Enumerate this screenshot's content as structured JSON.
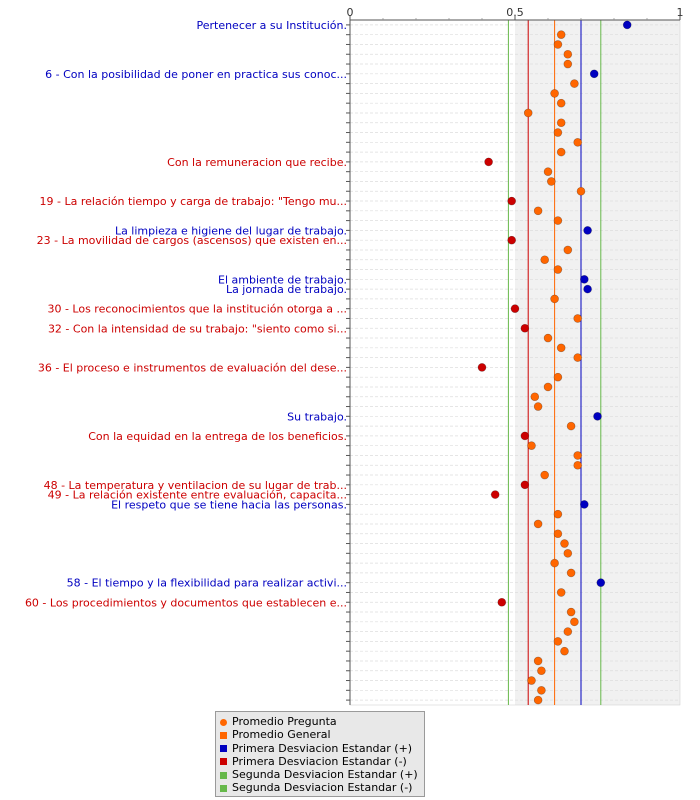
{
  "chart_data": {
    "type": "scatter",
    "orientation": "horizontal",
    "title": "",
    "xlabel": "",
    "ylabel": "",
    "xlim": [
      0,
      1
    ],
    "x_ticks": [
      0,
      0.5,
      1
    ],
    "x_tick_labels": [
      "0",
      "0.5",
      "1"
    ],
    "grid": true,
    "legend_position": "bottom",
    "colors": {
      "above": "#0000c0",
      "below": "#cc0000",
      "neutral": "#ff6600",
      "promedio_pregunta": "#ff6600",
      "promedio_general": "#ff6600",
      "sd1": "#0000c0",
      "sd1_minus": "#cc0000",
      "sd2": "#66b84a"
    },
    "promedio_general": 0.62,
    "sd1_plus": 0.7,
    "sd1_minus": 0.54,
    "sd2_plus": 0.76,
    "sd2_minus": 0.48,
    "points": [
      {
        "label": "Pertenecer a su Institución.",
        "value": 0.84,
        "cls": "above"
      },
      {
        "label": "",
        "value": 0.64,
        "cls": "neutral"
      },
      {
        "label": "",
        "value": 0.63,
        "cls": "neutral"
      },
      {
        "label": "",
        "value": 0.66,
        "cls": "neutral"
      },
      {
        "label": "",
        "value": 0.66,
        "cls": "neutral"
      },
      {
        "label": "6 - Con la posibilidad de poner en practica sus conoc...",
        "value": 0.74,
        "cls": "above"
      },
      {
        "label": "",
        "value": 0.68,
        "cls": "neutral"
      },
      {
        "label": "",
        "value": 0.62,
        "cls": "neutral"
      },
      {
        "label": "",
        "value": 0.64,
        "cls": "neutral"
      },
      {
        "label": "",
        "value": 0.54,
        "cls": "neutral"
      },
      {
        "label": "",
        "value": 0.64,
        "cls": "neutral"
      },
      {
        "label": "",
        "value": 0.63,
        "cls": "neutral"
      },
      {
        "label": "",
        "value": 0.69,
        "cls": "neutral"
      },
      {
        "label": "",
        "value": 0.64,
        "cls": "neutral"
      },
      {
        "label": "Con la remuneracion que recibe.",
        "value": 0.42,
        "cls": "below"
      },
      {
        "label": "",
        "value": 0.6,
        "cls": "neutral"
      },
      {
        "label": "",
        "value": 0.61,
        "cls": "neutral"
      },
      {
        "label": "",
        "value": 0.7,
        "cls": "neutral"
      },
      {
        "label": "19 - La relación tiempo y carga de trabajo: \"Tengo mu...",
        "value": 0.49,
        "cls": "below"
      },
      {
        "label": "",
        "value": 0.57,
        "cls": "neutral"
      },
      {
        "label": "",
        "value": 0.63,
        "cls": "neutral"
      },
      {
        "label": "La limpieza e higiene del lugar de trabajo.",
        "value": 0.72,
        "cls": "above"
      },
      {
        "label": "23 - La movilidad de cargos (ascensos) que existen en...",
        "value": 0.49,
        "cls": "below"
      },
      {
        "label": "",
        "value": 0.66,
        "cls": "neutral"
      },
      {
        "label": "",
        "value": 0.59,
        "cls": "neutral"
      },
      {
        "label": "",
        "value": 0.63,
        "cls": "neutral"
      },
      {
        "label": "El ambiente de trabajo.",
        "value": 0.71,
        "cls": "above"
      },
      {
        "label": "La jornada de trabajo.",
        "value": 0.72,
        "cls": "above"
      },
      {
        "label": "",
        "value": 0.62,
        "cls": "neutral"
      },
      {
        "label": "30 - Los reconocimientos que la institución otorga a ...",
        "value": 0.5,
        "cls": "below"
      },
      {
        "label": "",
        "value": 0.69,
        "cls": "neutral"
      },
      {
        "label": "32 - Con la intensidad de su trabajo: \"siento como si...",
        "value": 0.53,
        "cls": "below"
      },
      {
        "label": "",
        "value": 0.6,
        "cls": "neutral"
      },
      {
        "label": "",
        "value": 0.64,
        "cls": "neutral"
      },
      {
        "label": "",
        "value": 0.69,
        "cls": "neutral"
      },
      {
        "label": "36 - El proceso e instrumentos de evaluación del dese...",
        "value": 0.4,
        "cls": "below"
      },
      {
        "label": "",
        "value": 0.63,
        "cls": "neutral"
      },
      {
        "label": "",
        "value": 0.6,
        "cls": "neutral"
      },
      {
        "label": "",
        "value": 0.56,
        "cls": "neutral"
      },
      {
        "label": "",
        "value": 0.57,
        "cls": "neutral"
      },
      {
        "label": "Su trabajo.",
        "value": 0.75,
        "cls": "above"
      },
      {
        "label": "",
        "value": 0.67,
        "cls": "neutral"
      },
      {
        "label": "Con la equidad en la entrega de los beneficios.",
        "value": 0.53,
        "cls": "below"
      },
      {
        "label": "",
        "value": 0.55,
        "cls": "neutral"
      },
      {
        "label": "",
        "value": 0.69,
        "cls": "neutral"
      },
      {
        "label": "",
        "value": 0.69,
        "cls": "neutral"
      },
      {
        "label": "",
        "value": 0.59,
        "cls": "neutral"
      },
      {
        "label": "48 - La temperatura y ventilacion de su lugar de trab...",
        "value": 0.53,
        "cls": "below"
      },
      {
        "label": "49 - La relación existente entre evaluación, capacita...",
        "value": 0.44,
        "cls": "below"
      },
      {
        "label": "El respeto que se tiene hacia las personas.",
        "value": 0.71,
        "cls": "above"
      },
      {
        "label": "",
        "value": 0.63,
        "cls": "neutral"
      },
      {
        "label": "",
        "value": 0.57,
        "cls": "neutral"
      },
      {
        "label": "",
        "value": 0.63,
        "cls": "neutral"
      },
      {
        "label": "",
        "value": 0.65,
        "cls": "neutral"
      },
      {
        "label": "",
        "value": 0.66,
        "cls": "neutral"
      },
      {
        "label": "",
        "value": 0.62,
        "cls": "neutral"
      },
      {
        "label": "",
        "value": 0.67,
        "cls": "neutral"
      },
      {
        "label": "58 - El tiempo y la flexibilidad para realizar activi...",
        "value": 0.76,
        "cls": "above"
      },
      {
        "label": "",
        "value": 0.64,
        "cls": "neutral"
      },
      {
        "label": "60 - Los procedimientos y documentos que establecen e...",
        "value": 0.46,
        "cls": "below"
      },
      {
        "label": "",
        "value": 0.67,
        "cls": "neutral"
      },
      {
        "label": "",
        "value": 0.68,
        "cls": "neutral"
      },
      {
        "label": "",
        "value": 0.66,
        "cls": "neutral"
      },
      {
        "label": "",
        "value": 0.63,
        "cls": "neutral"
      },
      {
        "label": "",
        "value": 0.65,
        "cls": "neutral"
      },
      {
        "label": "",
        "value": 0.57,
        "cls": "neutral"
      },
      {
        "label": "",
        "value": 0.58,
        "cls": "neutral"
      },
      {
        "label": "",
        "value": 0.55,
        "cls": "neutral"
      },
      {
        "label": "",
        "value": 0.58,
        "cls": "neutral"
      },
      {
        "label": "",
        "value": 0.57,
        "cls": "neutral"
      }
    ],
    "legend": [
      {
        "label": "Promedio Pregunta",
        "color": "#ff6600",
        "shape": "circle"
      },
      {
        "label": "Promedio General",
        "color": "#ff6600",
        "shape": "square"
      },
      {
        "label": "Primera Desviacion Estandar (+)",
        "color": "#0000c0",
        "shape": "square"
      },
      {
        "label": "Primera Desviacion Estandar (-)",
        "color": "#cc0000",
        "shape": "square"
      },
      {
        "label": "Segunda Desviacion Estandar (+)",
        "color": "#66b84a",
        "shape": "square"
      },
      {
        "label": "Segunda Desviacion Estandar (-)",
        "color": "#66b84a",
        "shape": "square"
      }
    ]
  }
}
